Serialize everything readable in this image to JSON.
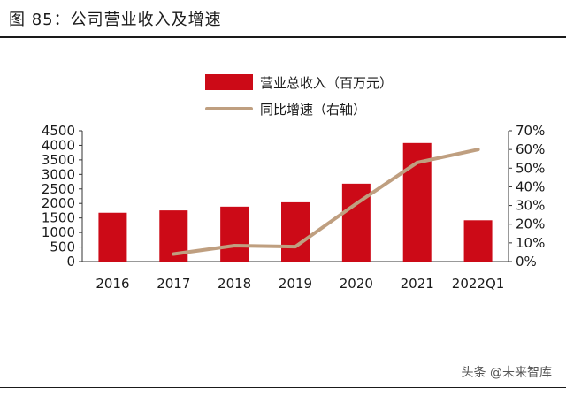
{
  "figure": {
    "title": "图 85：公司营业收入及增速"
  },
  "legend": [
    {
      "label": "营业总收入（百万元）",
      "kind": "bar"
    },
    {
      "label": "同比增速（右轴）",
      "kind": "line"
    }
  ],
  "watermark": "头条 @未来智库",
  "colors": {
    "bar": "#cc0a17",
    "line": "#bf9f80",
    "axis": "#333333",
    "text": "#1a1a1a"
  },
  "chart_data": {
    "type": "bar",
    "title": "公司营业收入及增速",
    "categories": [
      "2016",
      "2017",
      "2018",
      "2019",
      "2020",
      "2021",
      "2022Q1"
    ],
    "series": [
      {
        "name": "营业总收入（百万元）",
        "type": "bar",
        "axis": "left",
        "values": [
          1680,
          1760,
          1890,
          2040,
          2680,
          4080,
          1420
        ]
      },
      {
        "name": "同比增速（右轴）",
        "type": "line",
        "axis": "right",
        "values": [
          null,
          4,
          8.5,
          8,
          31,
          53,
          60
        ]
      }
    ],
    "y_left": {
      "min": 0,
      "max": 4500,
      "ticks": [
        "0",
        "500",
        "1000",
        "1500",
        "2000",
        "2500",
        "3000",
        "3500",
        "4000",
        "4500"
      ]
    },
    "y_right": {
      "min": 0,
      "max": 70,
      "ticks": [
        "0%",
        "10%",
        "20%",
        "30%",
        "40%",
        "50%",
        "60%",
        "70%"
      ]
    },
    "grid": false,
    "legend_position": "top-center"
  }
}
